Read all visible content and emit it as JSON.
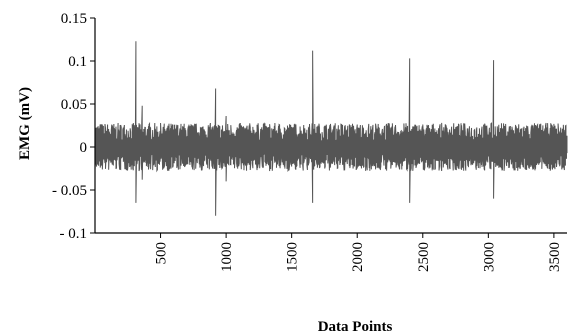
{
  "chart_data": {
    "type": "line",
    "title": "",
    "xlabel": "Data Points",
    "ylabel": "EMG (mV)",
    "xlim": [
      0,
      3600
    ],
    "ylim": [
      -0.1,
      0.15
    ],
    "x_ticks": [
      500,
      1000,
      1500,
      2000,
      2500,
      3000,
      3500
    ],
    "x_tick_labels": [
      "500",
      "1000",
      "1500",
      "2000",
      "2500",
      "3000",
      "3500"
    ],
    "y_ticks": [
      -0.1,
      -0.05,
      0,
      0.05,
      0.1,
      0.15
    ],
    "y_tick_labels": [
      "- 0.1",
      "- 0.05",
      "0",
      "0.05",
      "0.1",
      "0.15"
    ],
    "grid": false,
    "legend": "none",
    "series_color": "#555555",
    "baseline_noise_amplitude": 0.028,
    "spikes": [
      {
        "x": 310,
        "peak": 0.123,
        "trough": -0.065
      },
      {
        "x": 360,
        "peak": 0.048,
        "trough": -0.038
      },
      {
        "x": 920,
        "peak": 0.068,
        "trough": -0.08
      },
      {
        "x": 1000,
        "peak": 0.036,
        "trough": -0.04
      },
      {
        "x": 1660,
        "peak": 0.112,
        "trough": -0.065
      },
      {
        "x": 2400,
        "peak": 0.103,
        "trough": -0.065
      },
      {
        "x": 3040,
        "peak": 0.101,
        "trough": -0.06
      }
    ]
  }
}
